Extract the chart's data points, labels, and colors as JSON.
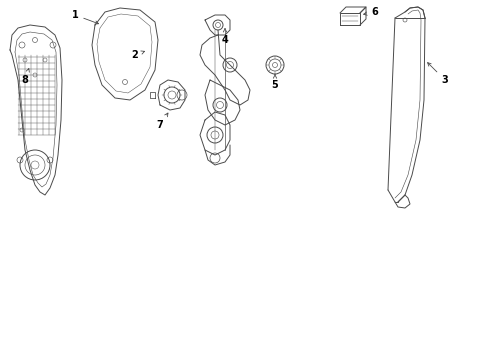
{
  "bg_color": "#ffffff",
  "line_color": "#4a4a4a",
  "figsize": [
    4.9,
    3.6
  ],
  "dpi": 100,
  "xlim": [
    0,
    49
  ],
  "ylim": [
    0,
    36
  ]
}
